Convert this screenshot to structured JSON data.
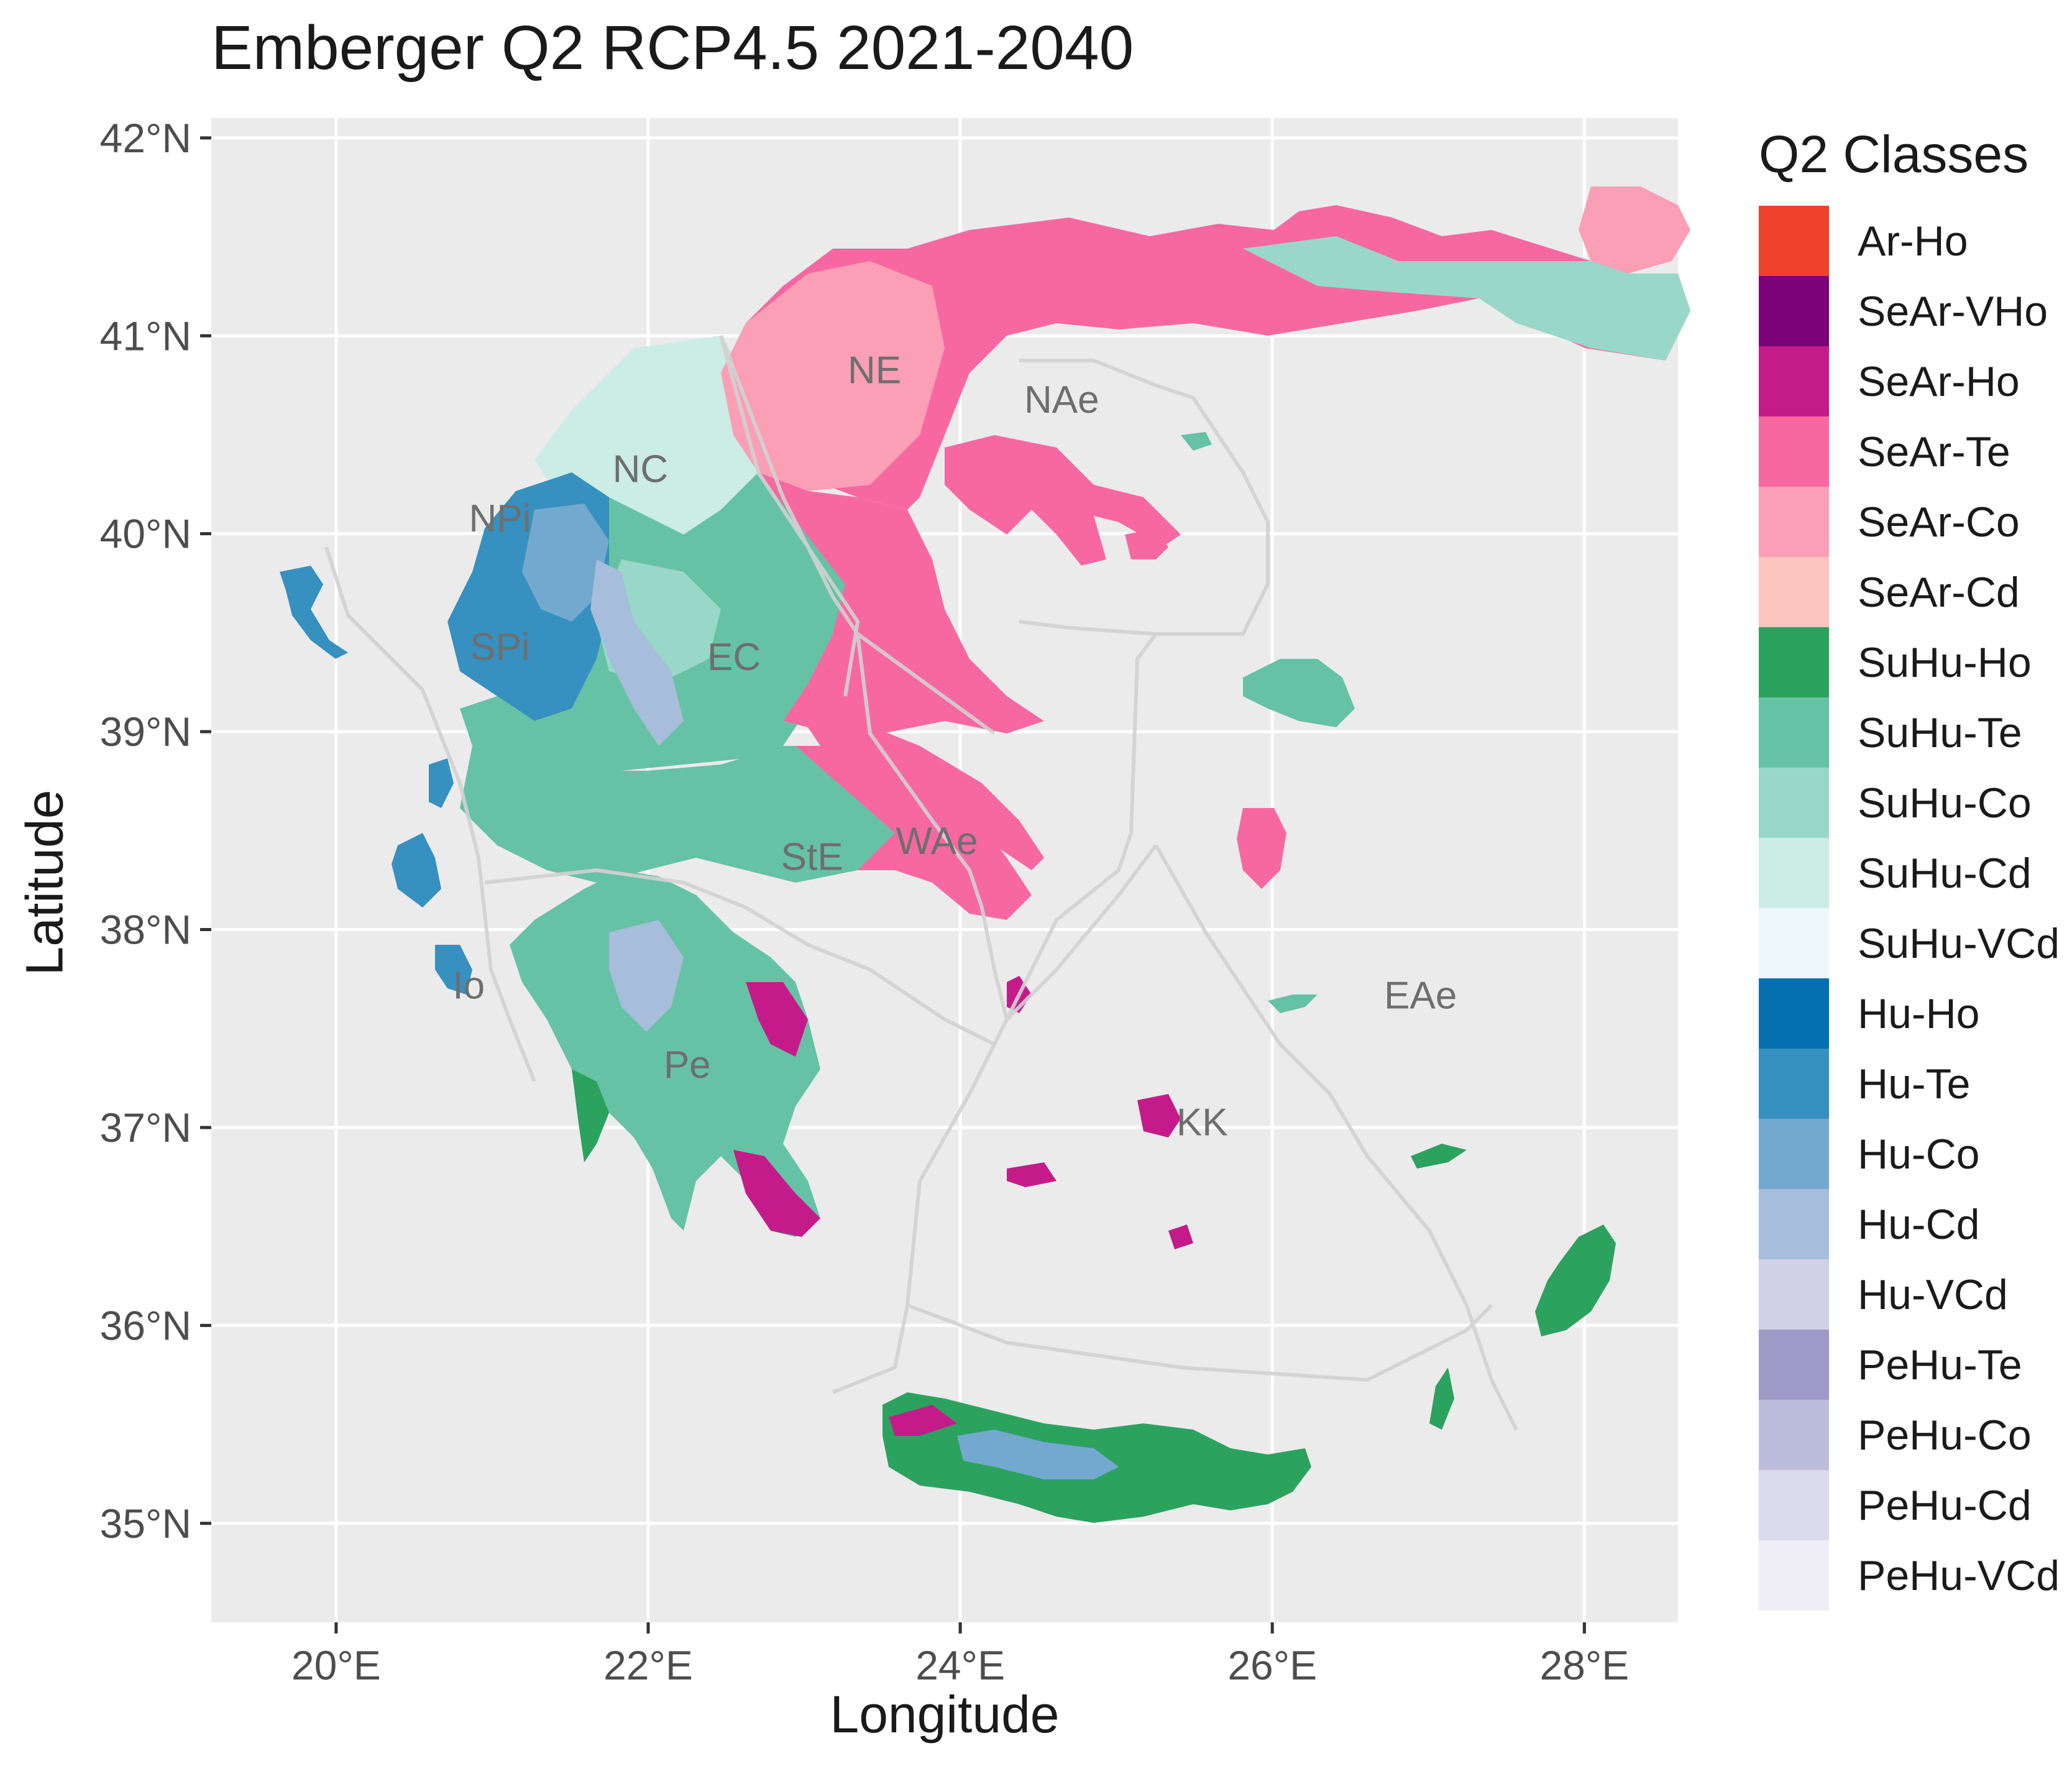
{
  "title": "Emberger Q2 RCP4.5 2021-2040",
  "axes": {
    "x_label": "Longitude",
    "y_label": "Latitude",
    "x_ticks": [
      "20°E",
      "22°E",
      "24°E",
      "26°E",
      "28°E"
    ],
    "y_ticks": [
      "42°N",
      "41°N",
      "40°N",
      "39°N",
      "38°N",
      "37°N",
      "36°N",
      "35°N"
    ],
    "x_range": [
      19.2,
      28.6
    ],
    "y_range": [
      34.5,
      42.1
    ]
  },
  "legend": {
    "title": "Q2 Classes",
    "items": [
      {
        "label": "Ar-Ho",
        "color": "#f0412b"
      },
      {
        "label": "SeAr-VHo",
        "color": "#7a0177"
      },
      {
        "label": "SeAr-Ho",
        "color": "#c51b8a"
      },
      {
        "label": "SeAr-Te",
        "color": "#f768a1"
      },
      {
        "label": "SeAr-Co",
        "color": "#fa9fb5"
      },
      {
        "label": "SeAr-Cd",
        "color": "#fcc5c0"
      },
      {
        "label": "SuHu-Ho",
        "color": "#2ca25f"
      },
      {
        "label": "SuHu-Te",
        "color": "#66c2a4"
      },
      {
        "label": "SuHu-Co",
        "color": "#99d8c9"
      },
      {
        "label": "SuHu-Cd",
        "color": "#ccece6"
      },
      {
        "label": "SuHu-VCd",
        "color": "#edf8fb"
      },
      {
        "label": "Hu-Ho",
        "color": "#0570b0"
      },
      {
        "label": "Hu-Te",
        "color": "#3690c0"
      },
      {
        "label": "Hu-Co",
        "color": "#74a9cf"
      },
      {
        "label": "Hu-Cd",
        "color": "#a6bddb"
      },
      {
        "label": "Hu-VCd",
        "color": "#d0d1e6"
      },
      {
        "label": "PeHu-Te",
        "color": "#9e9ac8"
      },
      {
        "label": "PeHu-Co",
        "color": "#bcbddc"
      },
      {
        "label": "PeHu-Cd",
        "color": "#dadaeb"
      },
      {
        "label": "PeHu-VCd",
        "color": "#efedf5"
      }
    ]
  },
  "regions": [
    {
      "label": "NE",
      "lon": 23.45,
      "lat": 40.83
    },
    {
      "label": "NAe",
      "lon": 24.65,
      "lat": 40.68
    },
    {
      "label": "NC",
      "lon": 21.95,
      "lat": 40.33
    },
    {
      "label": "NPi",
      "lon": 21.05,
      "lat": 40.08
    },
    {
      "label": "SPi",
      "lon": 21.05,
      "lat": 39.43
    },
    {
      "label": "EC",
      "lon": 22.55,
      "lat": 39.38
    },
    {
      "label": "StE",
      "lon": 23.05,
      "lat": 38.37
    },
    {
      "label": "WAe",
      "lon": 23.85,
      "lat": 38.45
    },
    {
      "label": "Pe",
      "lon": 22.25,
      "lat": 37.32
    },
    {
      "label": "Io",
      "lon": 20.85,
      "lat": 37.72
    },
    {
      "label": "EAe",
      "lon": 26.95,
      "lat": 37.67
    },
    {
      "label": "KK",
      "lon": 25.55,
      "lat": 37.03
    }
  ],
  "colors": {
    "panel_bg": "#ebebeb",
    "grid": "#ffffff",
    "boundary": "#d2d2d2",
    "region_label": "#6e6e6e",
    "axis_text": "#4d4d4d"
  }
}
